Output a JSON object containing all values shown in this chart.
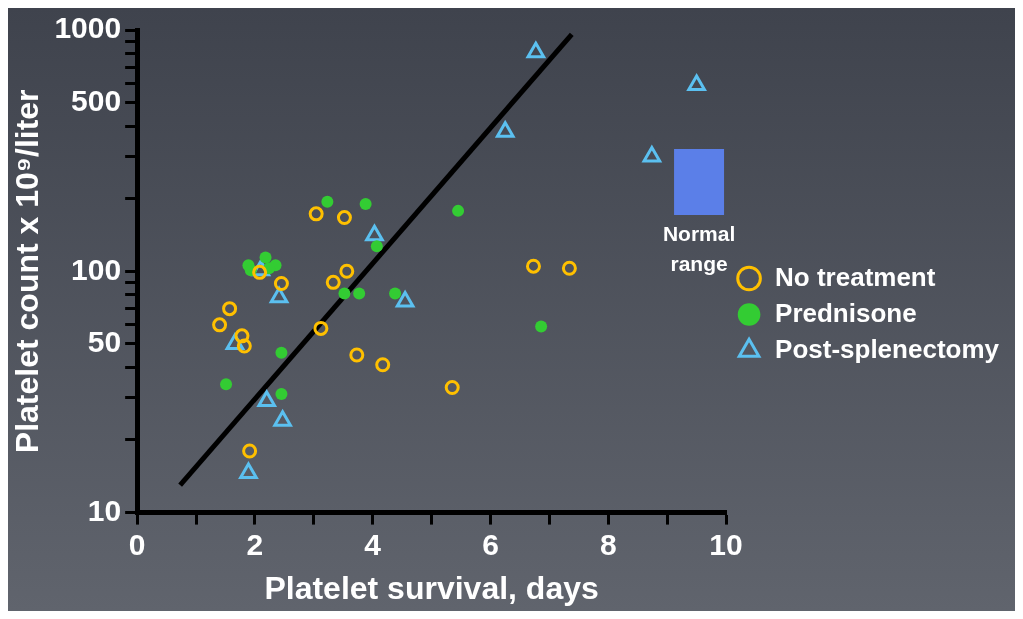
{
  "chart_data": {
    "type": "scatter",
    "xlabel": "Platelet survival, days",
    "ylabel": "Platelet count x 10⁹/liter",
    "log": "y",
    "grid": false,
    "legend": "right",
    "xlim": [
      0,
      10
    ],
    "xticks": [
      0,
      {
        "value": 1,
        "label": null
      },
      2,
      {
        "value": 3,
        "label": null
      },
      4,
      {
        "value": 5,
        "label": null
      },
      6,
      {
        "value": 7,
        "label": null
      },
      8,
      {
        "value": 9,
        "label": null
      },
      10
    ],
    "ylim": [
      10,
      1000
    ],
    "yticks": [
      10,
      {
        "value": 20,
        "label": null
      },
      {
        "value": 30,
        "label": null
      },
      {
        "value": 40,
        "label": null
      },
      50,
      {
        "value": 60,
        "label": null
      },
      {
        "value": 70,
        "label": null
      },
      {
        "value": 80,
        "label": null
      },
      {
        "value": 90,
        "label": null
      },
      100,
      {
        "value": 200,
        "label": null
      },
      {
        "value": 300,
        "label": null
      },
      {
        "value": 400,
        "label": null
      },
      500,
      {
        "value": 600,
        "label": null
      },
      {
        "value": 700,
        "label": null
      },
      {
        "value": 800,
        "label": null
      },
      {
        "value": 900,
        "label": null
      },
      1000
    ],
    "series": [
      {
        "name": "No treatment",
        "color": "#ffc000",
        "marker": "circle",
        "x": [
          3.04,
          3.52,
          3.56,
          3.33,
          2.45,
          1.57,
          1.4,
          1.78,
          1.82,
          3.12,
          3.73,
          4.17,
          5.35,
          1.91,
          6.73,
          7.34,
          2.08
        ],
        "values": [
          173,
          167,
          100,
          90,
          89,
          70,
          60,
          54,
          49,
          58,
          45,
          41,
          33,
          18,
          105,
          103,
          99
        ]
      },
      {
        "name": "Prednisone",
        "color": "#33cc33",
        "marker": "circle",
        "x": [
          3.23,
          3.88,
          5.45,
          4.07,
          1.89,
          2.18,
          2.35,
          2.24,
          1.93,
          3.52,
          3.77,
          4.38,
          2.45,
          1.51,
          2.45,
          6.86
        ],
        "values": [
          194,
          190,
          178,
          127,
          106,
          114,
          106,
          103,
          101,
          81,
          81,
          81,
          46,
          34,
          31,
          59
        ]
      },
      {
        "name": "Post-splenectomy",
        "color": "#5bc0f0",
        "marker": "triangle",
        "x": [
          6.77,
          9.5,
          6.25,
          8.74,
          4.03,
          2.1,
          2.41,
          4.55,
          1.66,
          2.2,
          2.47,
          1.89
        ],
        "values": [
          809,
          591,
          379,
          299,
          141,
          101,
          78,
          75,
          50,
          29,
          24,
          14.6
        ]
      },
      {
        "type": "line",
        "color": "#000000",
        "marker": "none",
        "x": [
          0.73,
          7.38
        ],
        "values": [
          13,
          960
        ]
      }
    ],
    "bands": [
      {
        "axis": "y",
        "from": 171,
        "to": 321,
        "label": "Normal range",
        "color": "#5b7fe8"
      }
    ]
  }
}
